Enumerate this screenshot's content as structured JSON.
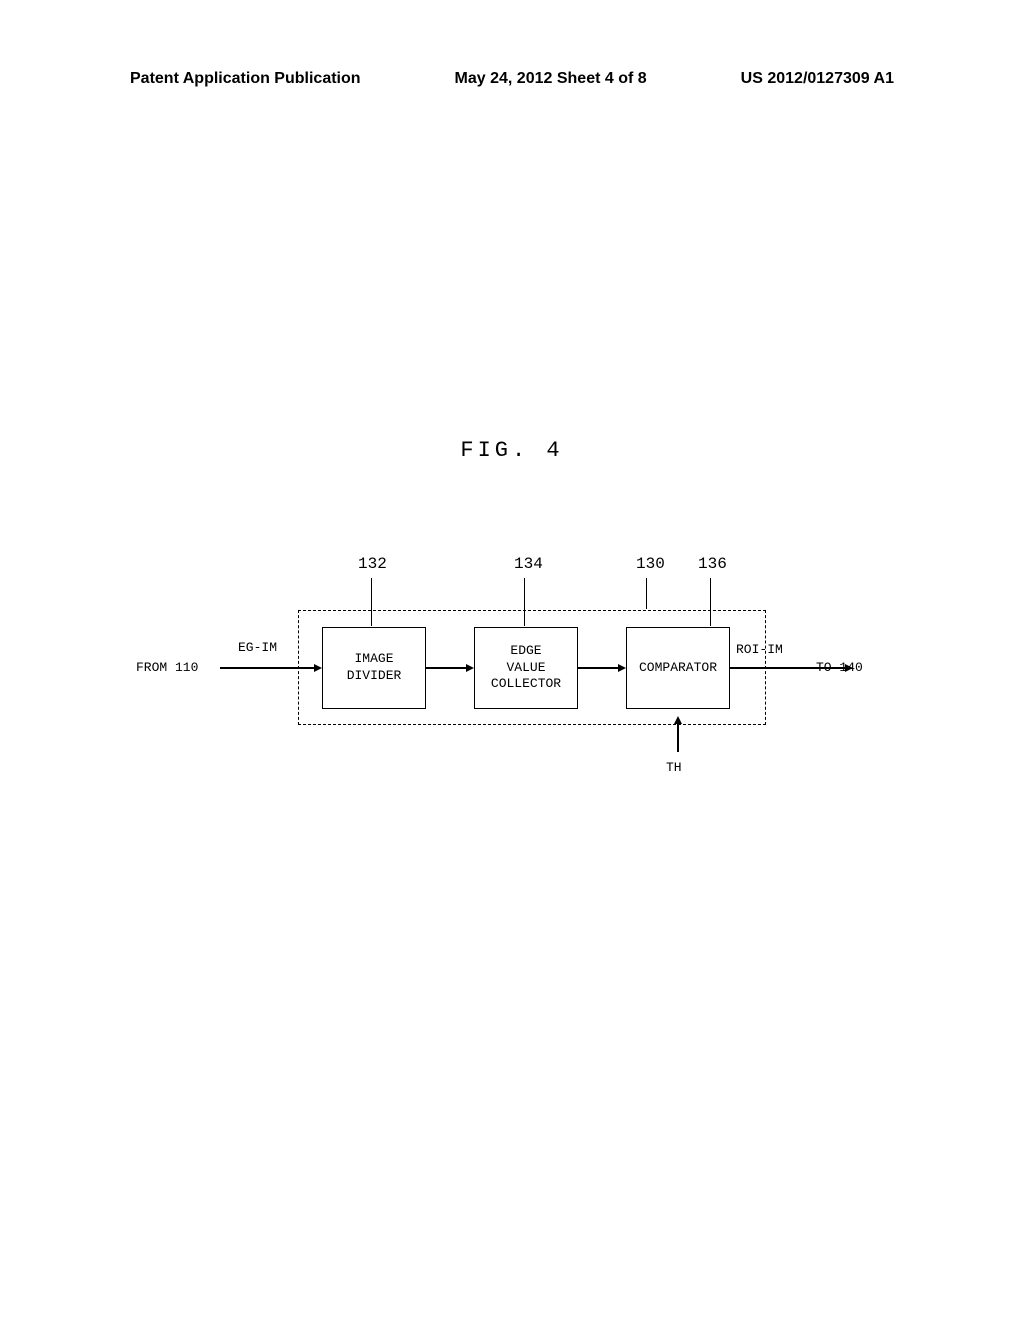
{
  "header": {
    "left": "Patent Application Publication",
    "center": "May 24, 2012  Sheet 4 of 8",
    "right": "US 2012/0127309 A1"
  },
  "figure": {
    "title": "FIG. 4",
    "container_ref": "130",
    "blocks": {
      "b132": {
        "ref": "132",
        "line1": "IMAGE",
        "line2": "DIVIDER"
      },
      "b134": {
        "ref": "134",
        "line1": "EDGE",
        "line2": "VALUE",
        "line3": "COLLECTOR"
      },
      "b136": {
        "ref": "136",
        "line1": "COMPARATOR"
      }
    },
    "signals": {
      "from": "FROM 110",
      "input": "EG-IM",
      "output": "ROI-IM",
      "to": "TO 140",
      "threshold": "TH"
    }
  },
  "colors": {
    "background": "#ffffff",
    "line": "#000000",
    "text": "#000000"
  }
}
